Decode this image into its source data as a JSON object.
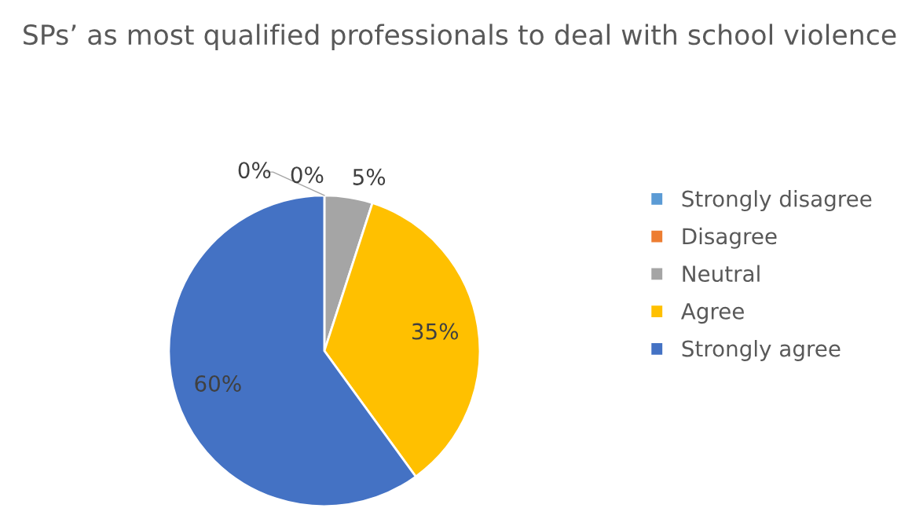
{
  "chart_data": {
    "type": "pie",
    "title": "SPs’ as most qualified professionals to deal with school violence",
    "categories": [
      "Strongly disagree",
      "Disagree",
      "Neutral",
      "Agree",
      "Strongly agree"
    ],
    "values": [
      0,
      0,
      5,
      35,
      60
    ],
    "colors": [
      "#5b9bd5",
      "#ed7d31",
      "#a5a5a5",
      "#ffc000",
      "#4472c4"
    ],
    "value_labels": [
      "0%",
      "0%",
      "5%",
      "35%",
      "60%"
    ],
    "legend": "right"
  }
}
